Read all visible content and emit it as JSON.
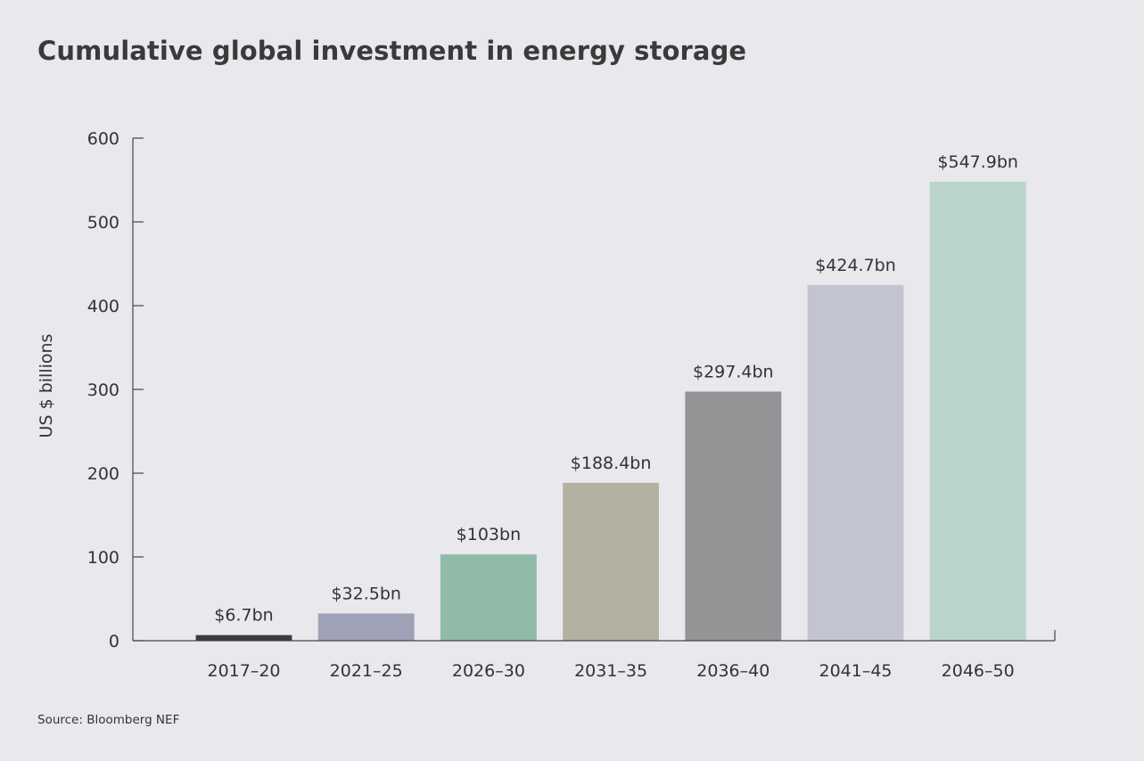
{
  "title": "Cumulative global investment in energy storage",
  "source": "Source: Bloomberg NEF",
  "chart_data": {
    "type": "bar",
    "title": "Cumulative global investment in energy storage",
    "xlabel": "",
    "ylabel": "US $ billions",
    "ylim": [
      0,
      600
    ],
    "yticks": [
      0,
      100,
      200,
      300,
      400,
      500,
      600
    ],
    "grid": false,
    "categories": [
      "2017–20",
      "2021–25",
      "2026–30",
      "2031–35",
      "2036–40",
      "2041–45",
      "2046–50"
    ],
    "values": [
      6.7,
      32.5,
      103,
      188.4,
      297.4,
      424.7,
      547.9
    ],
    "data_labels": [
      "$6.7bn",
      "$32.5bn",
      "$103bn",
      "$188.4bn",
      "$297.4bn",
      "$424.7bn",
      "$547.9bn"
    ],
    "colors": [
      "#3b3b3d",
      "#9fa1b6",
      "#8fbba7",
      "#b3b2a2",
      "#949496",
      "#c2c4d1",
      "#bad4cb"
    ]
  }
}
